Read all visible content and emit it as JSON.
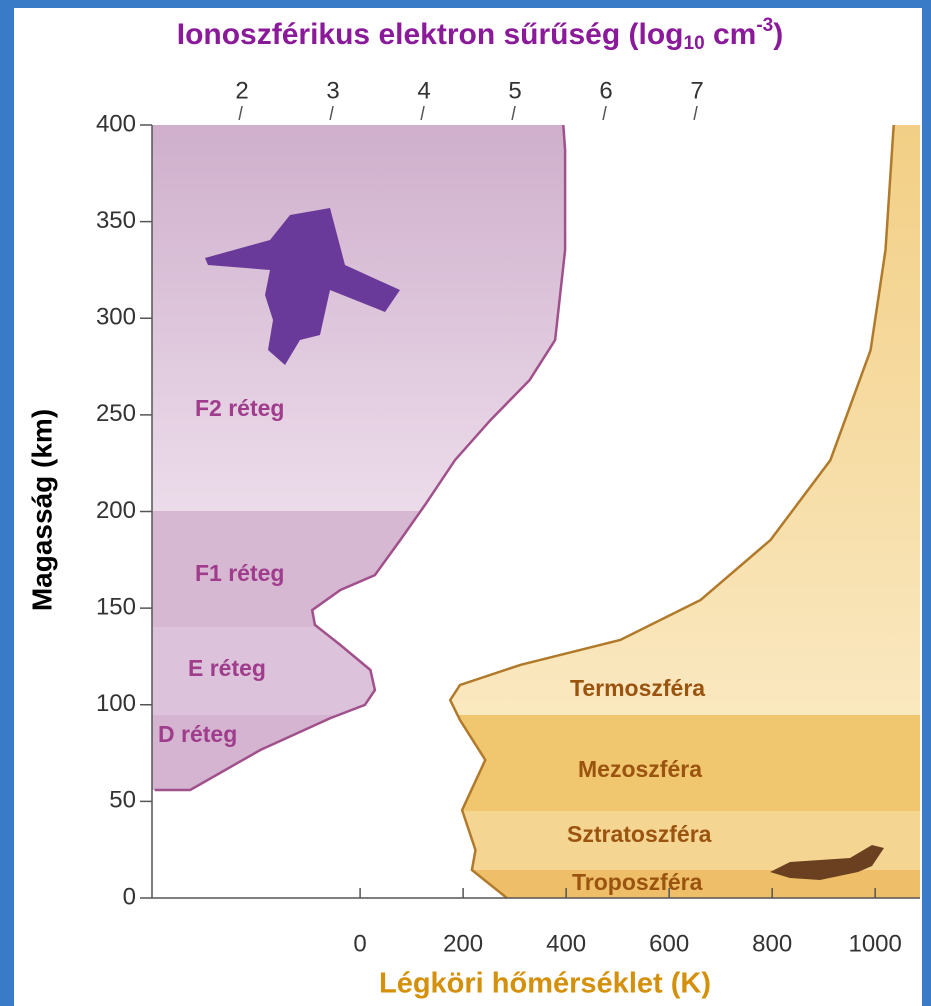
{
  "chart_data": {
    "type": "line",
    "title_parts": [
      "Ionoszférikus elektron sűrűség (log",
      "10",
      " cm",
      "-3",
      ")"
    ],
    "ylabel": "Magasság (km)",
    "xlabel": "Légköri hőmérséklet (K)",
    "ylim": [
      0,
      400
    ],
    "yticks": [
      0,
      50,
      100,
      150,
      200,
      250,
      300,
      350,
      400
    ],
    "x2lim": [
      1.01,
      9.45
    ],
    "x2ticks": [
      2,
      3,
      4,
      5,
      6,
      7
    ],
    "xlim": [
      -404,
      1087
    ],
    "xticks": [
      0,
      200,
      400,
      600,
      800,
      1000
    ],
    "series": [
      {
        "axis": "x2",
        "color": "#a0508a",
        "fill": "#e0cade",
        "x": [
          1.04,
          1.43,
          2.2,
          2.97,
          3.35,
          3.46,
          3.41,
          3.08,
          2.8,
          2.77,
          3.08,
          3.46,
          3.74,
          4.01,
          4.34,
          4.73,
          5.16,
          5.44,
          5.55,
          5.55,
          5.53
        ],
        "y": [
          55.9,
          55.9,
          76.6,
          93.1,
          99.9,
          107.6,
          118,
          130.9,
          141.3,
          149,
          159.4,
          167.1,
          185.3,
          203.4,
          226.6,
          247.3,
          268,
          288.7,
          335.3,
          387.1,
          400
        ]
      },
      {
        "axis": "x",
        "color": "#b07a2a",
        "fill": "#f6dba2",
        "x": [
          285,
          217,
          224,
          198,
          243,
          194,
          175,
          194,
          311,
          505,
          661,
          797,
          913,
          991,
          1020,
          1036
        ],
        "y": [
          0,
          14.5,
          24.8,
          45.5,
          71.4,
          92.1,
          102.4,
          110.2,
          120.6,
          133.5,
          154.2,
          185.3,
          226.6,
          283.5,
          335.3,
          400
        ]
      }
    ],
    "annotations": [
      "F2 réteg",
      "F1 réteg",
      "E réteg",
      "D réteg",
      "Termoszféra",
      "Mezoszféra",
      "Sztratoszféra",
      "Troposzféra"
    ]
  }
}
